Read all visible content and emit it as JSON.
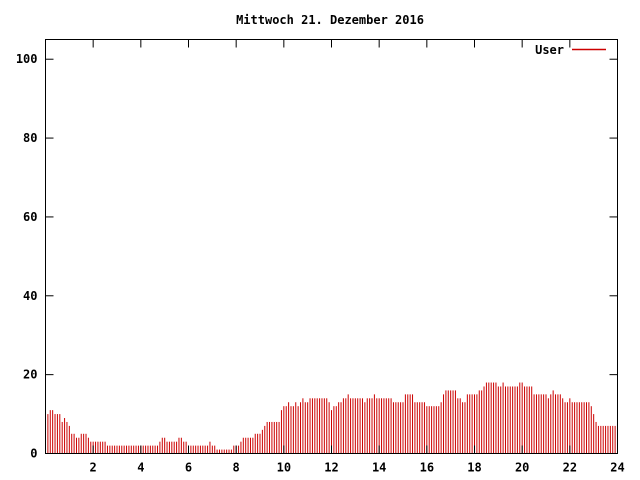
{
  "chart_data": {
    "type": "bar",
    "title": "Mittwoch 21. Dezember 2016",
    "xlabel": "",
    "ylabel": "",
    "xlim": [
      0,
      24
    ],
    "ylim": [
      0,
      105
    ],
    "x_ticks": [
      2,
      4,
      6,
      8,
      10,
      12,
      14,
      16,
      18,
      20,
      22,
      24
    ],
    "y_ticks": [
      0,
      20,
      40,
      60,
      80,
      100
    ],
    "grid": false,
    "legend_position": "top-right",
    "series": [
      {
        "name": "User",
        "color": "#cc0000",
        "x_start": 0,
        "x_step": 0.1,
        "values": [
          11,
          10,
          11,
          11,
          10,
          10,
          10,
          8,
          9,
          8,
          7,
          5,
          5,
          4,
          4,
          5,
          5,
          5,
          4,
          3,
          3,
          3,
          3,
          3,
          3,
          3,
          2,
          2,
          2,
          2,
          2,
          2,
          2,
          2,
          2,
          2,
          2,
          2,
          2,
          2,
          2,
          2,
          2,
          2,
          2,
          2,
          2,
          2,
          3,
          4,
          4,
          3,
          3,
          3,
          3,
          3,
          4,
          4,
          3,
          3,
          2,
          2,
          2,
          2,
          2,
          2,
          2,
          2,
          2,
          3,
          2,
          2,
          1,
          1,
          1,
          1,
          1,
          1,
          1,
          2,
          2,
          2,
          3,
          4,
          4,
          4,
          4,
          4,
          5,
          5,
          5,
          6,
          7,
          8,
          8,
          8,
          8,
          8,
          8,
          11,
          12,
          12,
          13,
          12,
          12,
          13,
          12,
          13,
          14,
          13,
          13,
          14,
          14,
          14,
          14,
          14,
          14,
          14,
          14,
          13,
          11,
          12,
          12,
          13,
          13,
          14,
          14,
          15,
          14,
          14,
          14,
          14,
          14,
          14,
          13,
          14,
          14,
          14,
          15,
          14,
          14,
          14,
          14,
          14,
          14,
          14,
          13,
          13,
          13,
          13,
          13,
          15,
          15,
          15,
          15,
          13,
          13,
          13,
          13,
          13,
          12,
          12,
          12,
          12,
          12,
          12,
          13,
          15,
          16,
          16,
          16,
          16,
          16,
          14,
          14,
          13,
          13,
          15,
          15,
          15,
          15,
          15,
          16,
          16,
          17,
          18,
          18,
          18,
          18,
          18,
          17,
          17,
          18,
          17,
          17,
          17,
          17,
          17,
          17,
          18,
          18,
          17,
          17,
          17,
          17,
          15,
          15,
          15,
          15,
          15,
          15,
          14,
          15,
          16,
          15,
          15,
          15,
          14,
          13,
          13,
          14,
          13,
          13,
          13,
          13,
          13,
          13,
          13,
          13,
          12,
          10,
          8,
          7,
          7,
          7,
          7,
          7,
          7,
          7,
          7
        ]
      }
    ]
  }
}
